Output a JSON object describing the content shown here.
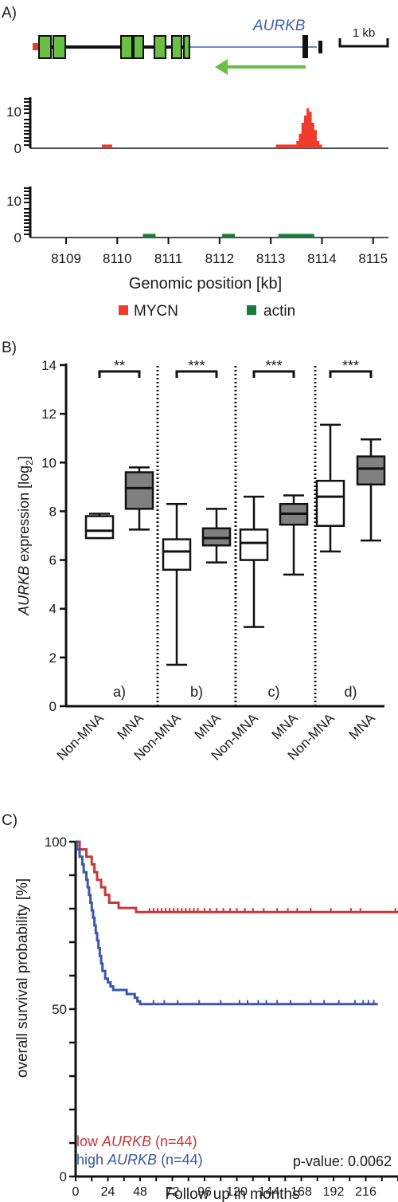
{
  "panel_labels": {
    "a": "A)",
    "b": "B)",
    "c": "C)"
  },
  "panel_a": {
    "gene_name": "AURKB",
    "scalebar_label": "1 kb",
    "xaxis_title": "Genomic position [kb]",
    "xticks": [
      "8109",
      "8110",
      "8111",
      "8112",
      "8113",
      "8114",
      "8115"
    ],
    "track_yticks": [
      "10",
      "0"
    ],
    "legend": [
      {
        "label": "MYCN",
        "color": "#ef3b2c"
      },
      {
        "label": "actin",
        "color": "#1b7a3a"
      }
    ],
    "colors": {
      "exon": "#6abf45",
      "intron_line": "#3d5fb5",
      "arrow": "#6abf45"
    }
  },
  "chart_data": [
    {
      "type": "area",
      "panel": "A",
      "series_name": "MYCN",
      "color": "#ef3b2c",
      "xlim": [
        8108.3,
        8115.3
      ],
      "ylim": [
        0,
        14
      ],
      "x": [
        8109.7,
        8109.9,
        8113.1,
        8113.4,
        8113.5,
        8113.55,
        8113.6,
        8113.65,
        8113.7,
        8113.75,
        8113.8,
        8113.85,
        8113.9,
        8113.95,
        8114.0
      ],
      "y": [
        1,
        0,
        1,
        1,
        2,
        4,
        7,
        9,
        11,
        10,
        7,
        5,
        2,
        1,
        0
      ]
    },
    {
      "type": "area",
      "panel": "A",
      "series_name": "actin",
      "color": "#1b7a3a",
      "xlim": [
        8108.3,
        8115.3
      ],
      "ylim": [
        0,
        14
      ],
      "segments": [
        [
          8110.5,
          8110.75
        ],
        [
          8112.05,
          8112.3
        ],
        [
          8113.15,
          8113.85
        ]
      ],
      "value": 1
    },
    {
      "type": "box",
      "panel": "B",
      "ylabel": "AURKB expression [log2]",
      "ylim": [
        0,
        14
      ],
      "yticks": [
        "0",
        "2",
        "4",
        "6",
        "8",
        "10",
        "12",
        "14"
      ],
      "groups": [
        {
          "id": "a)",
          "significance": "**",
          "boxes": [
            {
              "label": "Non-MNA",
              "fill": "white",
              "min": 6.9,
              "q1": 6.9,
              "median": 7.2,
              "q3": 7.8,
              "max": 7.9
            },
            {
              "label": "MNA",
              "fill": "#808080",
              "min": 7.25,
              "q1": 8.1,
              "median": 8.95,
              "q3": 9.6,
              "max": 9.8
            }
          ]
        },
        {
          "id": "b)",
          "significance": "***",
          "boxes": [
            {
              "label": "Non-MNA",
              "fill": "white",
              "min": 1.7,
              "q1": 5.6,
              "median": 6.35,
              "q3": 6.85,
              "max": 8.3
            },
            {
              "label": "MNA",
              "fill": "#808080",
              "min": 5.9,
              "q1": 6.6,
              "median": 6.9,
              "q3": 7.3,
              "max": 8.1
            }
          ]
        },
        {
          "id": "c)",
          "significance": "***",
          "boxes": [
            {
              "label": "Non-MNA",
              "fill": "white",
              "min": 3.25,
              "q1": 6.0,
              "median": 6.7,
              "q3": 7.25,
              "max": 8.6
            },
            {
              "label": "MNA",
              "fill": "#808080",
              "min": 5.4,
              "q1": 7.45,
              "median": 7.9,
              "q3": 8.3,
              "max": 8.65
            }
          ]
        },
        {
          "id": "d)",
          "significance": "***",
          "boxes": [
            {
              "label": "Non-MNA",
              "fill": "white",
              "min": 6.35,
              "q1": 7.4,
              "median": 8.6,
              "q3": 9.25,
              "max": 11.55
            },
            {
              "label": "MNA",
              "fill": "#808080",
              "min": 6.8,
              "q1": 9.1,
              "median": 9.75,
              "q3": 10.25,
              "max": 10.95
            }
          ]
        }
      ]
    },
    {
      "type": "line",
      "panel": "C",
      "xlabel": "Follow up in months",
      "ylabel": "overall survival probability [%]",
      "xticks": [
        "0",
        "24",
        "48",
        "72",
        "96",
        "120",
        "144",
        "168",
        "192",
        "216"
      ],
      "xlim": [
        0,
        240
      ],
      "yticks": [
        "0",
        "50",
        "100"
      ],
      "ylim": [
        0,
        100
      ],
      "pvalue_text": "p-value: 0.0062",
      "series": [
        {
          "name_prefix": "low ",
          "name_gene": "AURKB",
          "name_suffix": " (n=44)",
          "color": "#c8373a",
          "x": [
            0,
            3,
            8,
            12,
            14,
            16,
            19,
            22,
            25,
            28,
            32,
            38,
            45,
            210,
            240
          ],
          "y": [
            100,
            97.7,
            95.5,
            93.2,
            90.9,
            88.6,
            86.4,
            84.1,
            81.8,
            81.8,
            80.2,
            80.2,
            79.0,
            79.0,
            79.0
          ],
          "censor_x": [
            55,
            58,
            61,
            64,
            67,
            70,
            73,
            76,
            79,
            82,
            85,
            88,
            91,
            96,
            100,
            105,
            110,
            115,
            120,
            126,
            132,
            140,
            150,
            158,
            165,
            175,
            190,
            205,
            212,
            238
          ]
        },
        {
          "name_prefix": "high ",
          "name_gene": "AURKB",
          "name_suffix": " (n=44)",
          "color": "#3a58a8",
          "x": [
            0,
            1,
            3,
            5,
            6,
            8,
            9,
            10,
            11,
            12,
            13,
            14,
            15,
            16,
            17,
            18,
            19,
            20,
            22,
            24,
            26,
            28,
            30,
            38,
            44,
            46,
            48,
            225
          ],
          "y": [
            100,
            97.7,
            95.5,
            93.2,
            90.9,
            88.6,
            86.4,
            84.1,
            81.8,
            79.5,
            77.3,
            75.0,
            72.7,
            70.5,
            68.2,
            65.9,
            63.6,
            61.4,
            59.1,
            58.0,
            56.8,
            55.7,
            55.7,
            54.5,
            53.4,
            52.3,
            51.5,
            51.5
          ],
          "censor_x": [
            58,
            66,
            76,
            92,
            108,
            122,
            128,
            136,
            142,
            150,
            160,
            175,
            185,
            196,
            208,
            214,
            218,
            222
          ]
        }
      ]
    }
  ]
}
